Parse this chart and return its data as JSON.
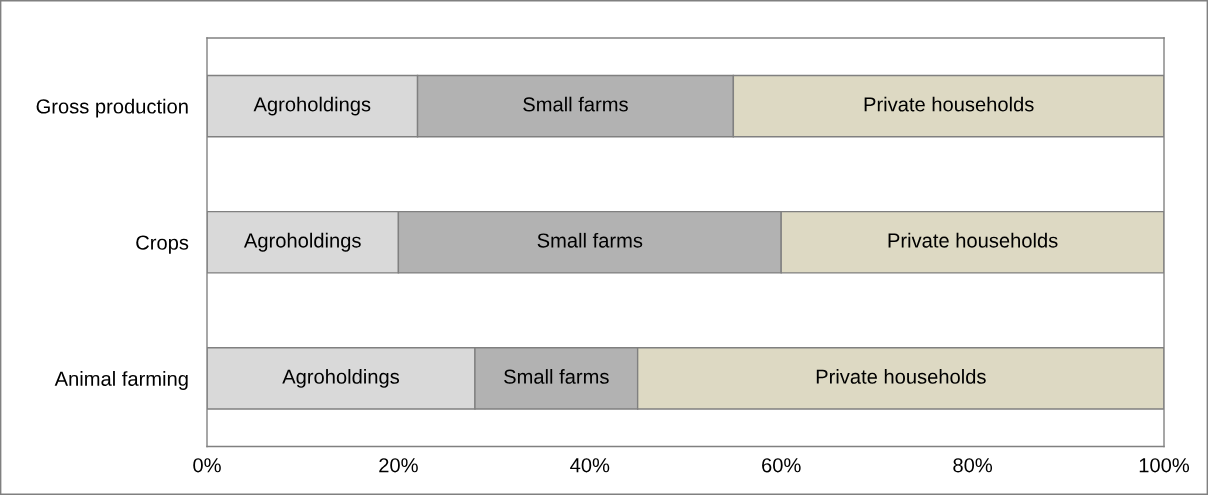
{
  "chart_data": {
    "type": "bar",
    "orientation": "horizontal",
    "stacked": true,
    "categories": [
      "Gross production",
      "Crops",
      "Animal farming"
    ],
    "series": [
      {
        "name": "Agroholdings",
        "color": "#d9d9d9",
        "values": [
          22,
          20,
          28
        ]
      },
      {
        "name": "Small farms",
        "color": "#b2b2b2",
        "values": [
          33,
          40,
          17
        ]
      },
      {
        "name": "Private households",
        "color": "#ddd9c3",
        "values": [
          45,
          40,
          55
        ]
      }
    ],
    "xlim": [
      0,
      100
    ],
    "xticks": [
      {
        "value": 0,
        "label": "0%"
      },
      {
        "value": 20,
        "label": "20%"
      },
      {
        "value": 40,
        "label": "40%"
      },
      {
        "value": 60,
        "label": "60%"
      },
      {
        "value": 80,
        "label": "80%"
      },
      {
        "value": 100,
        "label": "100%"
      }
    ]
  }
}
